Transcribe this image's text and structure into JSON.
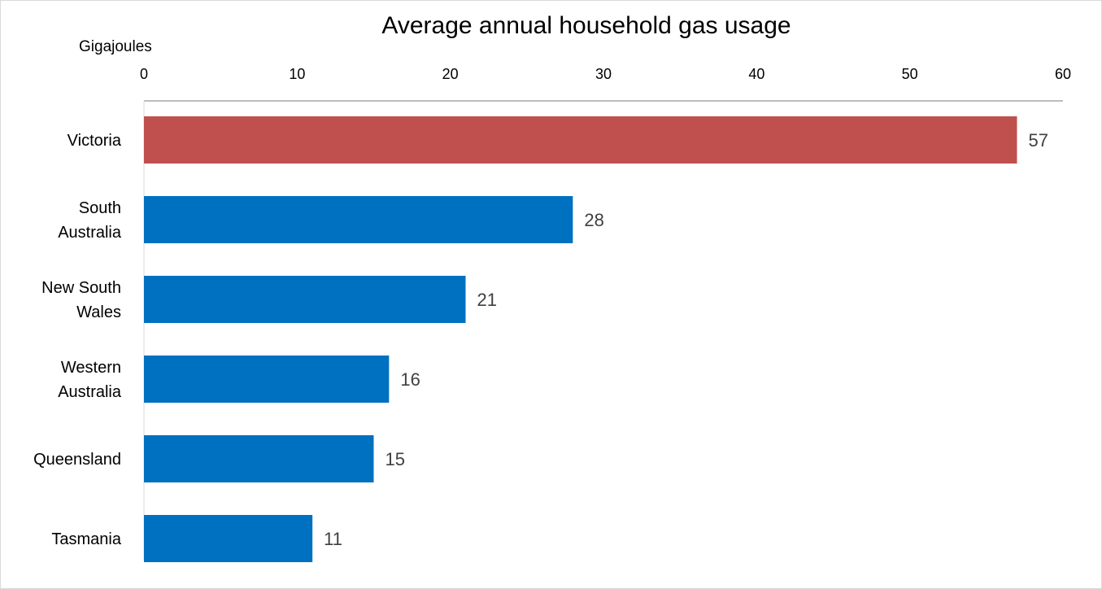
{
  "chart_data": {
    "type": "bar",
    "orientation": "horizontal",
    "title": "Average annual household gas usage",
    "xlabel": "Gigajoules",
    "ylabel": "",
    "xlim": [
      0,
      60
    ],
    "ticks": [
      0,
      10,
      20,
      30,
      40,
      50,
      60
    ],
    "axis_position": "top",
    "grid": false,
    "categories": [
      [
        "Victoria"
      ],
      [
        "South",
        "Australia"
      ],
      [
        "New South",
        "Wales"
      ],
      [
        "Western",
        "Australia"
      ],
      [
        "Queensland"
      ],
      [
        "Tasmania"
      ]
    ],
    "values": [
      57,
      28,
      21,
      16,
      15,
      11
    ],
    "colors": [
      "#c0504d",
      "#0070c0",
      "#0070c0",
      "#0070c0",
      "#0070c0",
      "#0070c0"
    ],
    "data_labels": [
      "57",
      "28",
      "21",
      "16",
      "15",
      "11"
    ]
  }
}
